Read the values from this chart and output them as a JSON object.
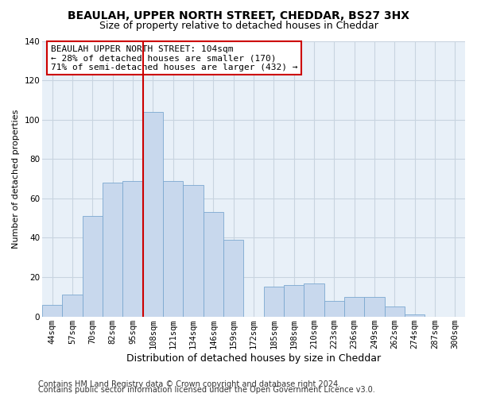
{
  "title": "BEAULAH, UPPER NORTH STREET, CHEDDAR, BS27 3HX",
  "subtitle": "Size of property relative to detached houses in Cheddar",
  "xlabel": "Distribution of detached houses by size in Cheddar",
  "ylabel": "Number of detached properties",
  "bar_labels": [
    "44sqm",
    "57sqm",
    "70sqm",
    "82sqm",
    "95sqm",
    "108sqm",
    "121sqm",
    "134sqm",
    "146sqm",
    "159sqm",
    "172sqm",
    "185sqm",
    "198sqm",
    "210sqm",
    "223sqm",
    "236sqm",
    "249sqm",
    "262sqm",
    "274sqm",
    "287sqm",
    "300sqm"
  ],
  "bar_heights": [
    6,
    11,
    51,
    68,
    69,
    104,
    69,
    67,
    53,
    39,
    0,
    15,
    16,
    17,
    8,
    10,
    10,
    5,
    1,
    0,
    0
  ],
  "bar_color": "#c8d8ed",
  "bar_edge_color": "#7ba8d0",
  "vline_color": "#cc0000",
  "vline_index": 5,
  "ylim": [
    0,
    140
  ],
  "yticks": [
    0,
    20,
    40,
    60,
    80,
    100,
    120,
    140
  ],
  "annotation_title": "BEAULAH UPPER NORTH STREET: 104sqm",
  "annotation_line1": "← 28% of detached houses are smaller (170)",
  "annotation_line2": "71% of semi-detached houses are larger (432) →",
  "footer1": "Contains HM Land Registry data © Crown copyright and database right 2024.",
  "footer2": "Contains public sector information licensed under the Open Government Licence v3.0.",
  "background_color": "#ffffff",
  "plot_bg_color": "#e8f0f8",
  "grid_color": "#c8d4e0",
  "title_fontsize": 10,
  "subtitle_fontsize": 9,
  "xlabel_fontsize": 9,
  "ylabel_fontsize": 8,
  "tick_fontsize": 7.5,
  "footer_fontsize": 7,
  "ann_fontsize": 8
}
